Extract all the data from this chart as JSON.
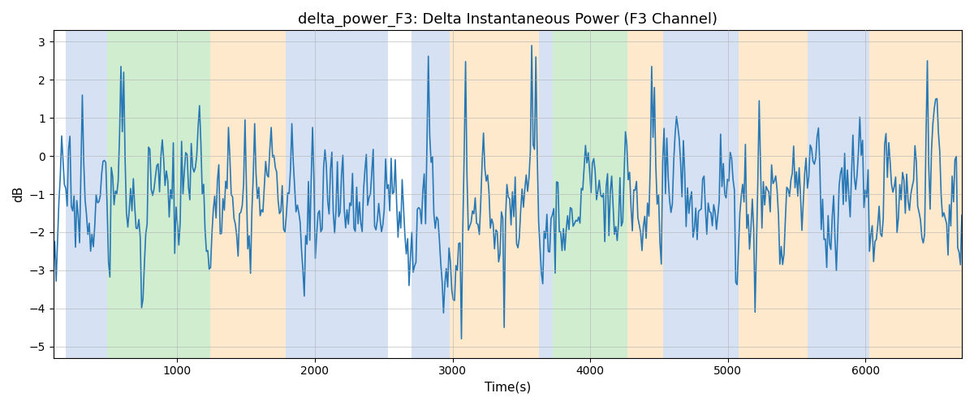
{
  "title": "delta_power_F3: Delta Instantaneous Power (F3 Channel)",
  "xlabel": "Time(s)",
  "ylabel": "dB",
  "xlim": [
    100,
    6700
  ],
  "ylim": [
    -5.3,
    3.3
  ],
  "line_color": "#2878b5",
  "line_width": 1.2,
  "background_color": "#ffffff",
  "grid_color": "#b0b0b0",
  "bands": [
    {
      "start": 190,
      "end": 490,
      "color": "#aec6e8",
      "alpha": 0.5
    },
    {
      "start": 490,
      "end": 1240,
      "color": "#98d898",
      "alpha": 0.45
    },
    {
      "start": 1240,
      "end": 1790,
      "color": "#ffd59b",
      "alpha": 0.5
    },
    {
      "start": 1790,
      "end": 2530,
      "color": "#aec6e8",
      "alpha": 0.5
    },
    {
      "start": 2700,
      "end": 2980,
      "color": "#aec6e8",
      "alpha": 0.5
    },
    {
      "start": 2980,
      "end": 3630,
      "color": "#ffd59b",
      "alpha": 0.5
    },
    {
      "start": 3630,
      "end": 3730,
      "color": "#aec6e8",
      "alpha": 0.5
    },
    {
      "start": 3730,
      "end": 4270,
      "color": "#98d898",
      "alpha": 0.45
    },
    {
      "start": 4270,
      "end": 4530,
      "color": "#ffd59b",
      "alpha": 0.5
    },
    {
      "start": 4530,
      "end": 5080,
      "color": "#aec6e8",
      "alpha": 0.5
    },
    {
      "start": 5080,
      "end": 5580,
      "color": "#ffd59b",
      "alpha": 0.5
    },
    {
      "start": 5580,
      "end": 6030,
      "color": "#aec6e8",
      "alpha": 0.5
    },
    {
      "start": 6030,
      "end": 6700,
      "color": "#ffd59b",
      "alpha": 0.5
    }
  ],
  "xticks": [
    1000,
    2000,
    3000,
    4000,
    5000,
    6000
  ],
  "yticks": [
    -5,
    -4,
    -3,
    -2,
    -1,
    0,
    1,
    2,
    3
  ],
  "n_points": 660,
  "x_start": 100,
  "x_end": 6700,
  "seed": 17
}
